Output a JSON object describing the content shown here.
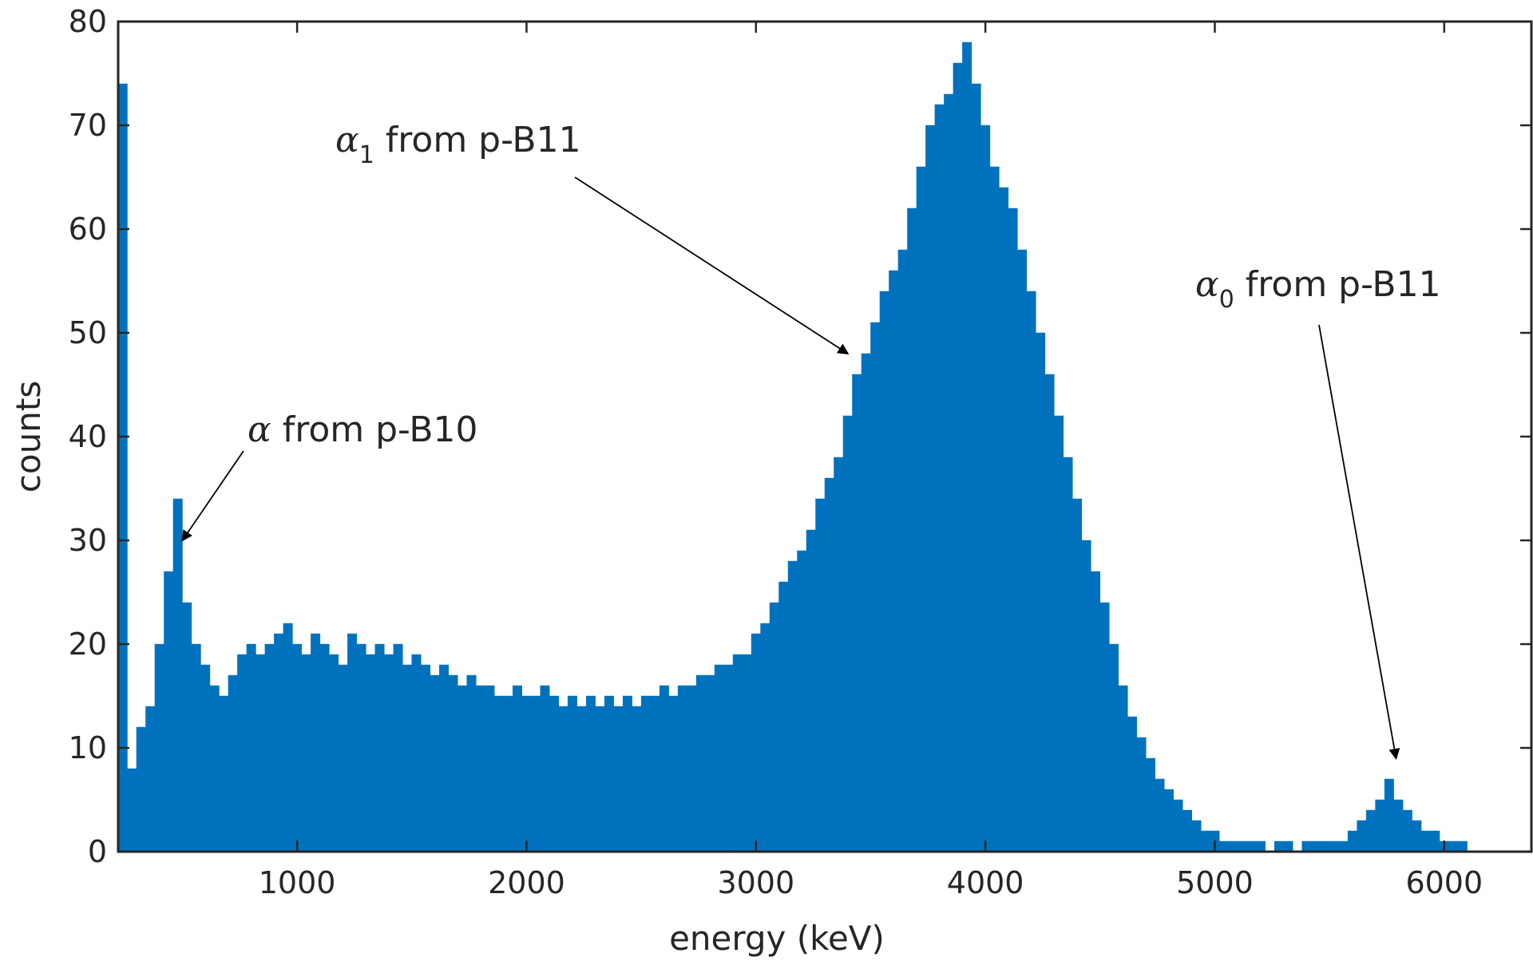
{
  "chart_data": {
    "type": "bar",
    "xlabel": "energy (keV)",
    "ylabel": "counts",
    "xlim": [
      220,
      6380
    ],
    "ylim": [
      0,
      80
    ],
    "x_ticks": [
      1000,
      2000,
      3000,
      4000,
      5000,
      6000
    ],
    "y_ticks": [
      0,
      10,
      20,
      30,
      40,
      50,
      60,
      70,
      80
    ],
    "grid": false,
    "bar_color": "#0072BD",
    "axis_color": "#262626",
    "series": [
      {
        "x": [
          220,
          260,
          300,
          340,
          380,
          420,
          460,
          500,
          540,
          580,
          620,
          660,
          700,
          740,
          780,
          820,
          860,
          900,
          940,
          980,
          1020,
          1060,
          1100,
          1140,
          1180,
          1220,
          1260,
          1300,
          1340,
          1380,
          1420,
          1460,
          1500,
          1540,
          1580,
          1620,
          1660,
          1700,
          1740,
          1780,
          1820,
          1860,
          1900,
          1940,
          1980,
          2020,
          2060,
          2100,
          2140,
          2180,
          2220,
          2260,
          2300,
          2340,
          2380,
          2420,
          2460,
          2500,
          2540,
          2580,
          2620,
          2660,
          2700,
          2740,
          2780,
          2820,
          2860,
          2900,
          2940,
          2980,
          3020,
          3060,
          3100,
          3140,
          3180,
          3220,
          3260,
          3300,
          3340,
          3380,
          3420,
          3460,
          3500,
          3540,
          3580,
          3620,
          3660,
          3700,
          3740,
          3780,
          3820,
          3860,
          3900,
          3940,
          3980,
          4020,
          4060,
          4100,
          4140,
          4180,
          4220,
          4260,
          4300,
          4340,
          4380,
          4420,
          4460,
          4500,
          4540,
          4580,
          4620,
          4660,
          4700,
          4740,
          4780,
          4820,
          4860,
          4900,
          4940,
          4980,
          5020,
          5060,
          5100,
          5140,
          5180,
          5220,
          5260,
          5300,
          5340,
          5380,
          5420,
          5460,
          5500,
          5540,
          5580,
          5620,
          5660,
          5700,
          5740,
          5780,
          5820,
          5860,
          5900,
          5940,
          5980,
          6020,
          6060
        ],
        "values": [
          74,
          8,
          12,
          14,
          20,
          27,
          34,
          24,
          20,
          18,
          16,
          15,
          17,
          19,
          20,
          19,
          20,
          21,
          22,
          20,
          19,
          21,
          20,
          19,
          18,
          21,
          20,
          19,
          20,
          19,
          20,
          18,
          19,
          18,
          17,
          18,
          17,
          16,
          17,
          16,
          16,
          15,
          15,
          16,
          15,
          15,
          16,
          15,
          14,
          15,
          14,
          15,
          14,
          15,
          14,
          15,
          14,
          15,
          15,
          16,
          15,
          16,
          16,
          17,
          17,
          18,
          18,
          19,
          19,
          21,
          22,
          24,
          26,
          28,
          29,
          31,
          34,
          36,
          38,
          42,
          46,
          48,
          51,
          54,
          56,
          58,
          62,
          66,
          70,
          72,
          73,
          76,
          78,
          74,
          70,
          66,
          64,
          62,
          58,
          54,
          50,
          46,
          42,
          38,
          34,
          30,
          27,
          24,
          20,
          16,
          13,
          11,
          9,
          7,
          6,
          5,
          4,
          3,
          2,
          2,
          1,
          1,
          1,
          1,
          1,
          0,
          1,
          1,
          0,
          1,
          1,
          1,
          1,
          1,
          2,
          3,
          4,
          5,
          7,
          5,
          4,
          3,
          2,
          2,
          1,
          1,
          1
        ]
      }
    ],
    "annotations": [
      {
        "greek": "α",
        "subscript": "",
        "text": "from p-B10",
        "target_x": 500,
        "target_y": 30
      },
      {
        "greek": "α",
        "subscript": "1",
        "text": "from p-B11",
        "target_x": 3400,
        "target_y": 48
      },
      {
        "greek": "α",
        "subscript": "0",
        "text": "from p-B11",
        "target_x": 5790,
        "target_y": 9
      }
    ]
  }
}
